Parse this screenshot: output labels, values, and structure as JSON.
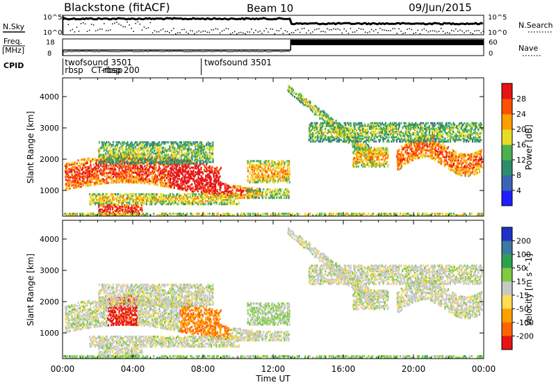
{
  "header": {
    "station": "Blackstone (fitACF)",
    "beam": "Beam 10",
    "date": "09/Jun/2015"
  },
  "left_labels": {
    "nsky": "N.Sky",
    "freq_top": "Freq.",
    "freq_unit": "[MHz]",
    "cpid": "CPID"
  },
  "right_labels": {
    "nsearch": "N.Search",
    "nave": "Nave"
  },
  "scale_labels": {
    "noise_hi": "10^5",
    "noise_lo": "10^0",
    "freq_hi": "18",
    "freq_lo": "8",
    "nave_hi": "60",
    "nave_lo": "0"
  },
  "cpid_labels": [
    {
      "text": "twofsound 3501",
      "hour": 0.05,
      "row": 0
    },
    {
      "text": "rbsp",
      "hour": 0.05,
      "row": 1
    },
    {
      "text": "CT-rbsp",
      "hour": 1.55,
      "row": 1
    },
    {
      "text": "rbsp 200",
      "hour": 2.2,
      "row": 1
    },
    {
      "text": "twofsound 3501",
      "hour": 8.0,
      "row": 0
    }
  ],
  "chart_data": [
    {
      "type": "heatmap",
      "name": "power",
      "ylabel": "Slant Range [km]",
      "yticks": [
        1000,
        2000,
        3000,
        4000
      ],
      "ylim": [
        180,
        4600
      ],
      "colorbar_label": "Power [dB]",
      "colorbar_ticks": [
        "4",
        "8",
        "12",
        "16",
        "20",
        "24",
        "28"
      ],
      "colorbar_colors": [
        "#1e1eff",
        "#3c64b4",
        "#2e8c6c",
        "#4db050",
        "#e6dc28",
        "#ff9e00",
        "#ff5000",
        "#e61414"
      ]
    },
    {
      "type": "heatmap",
      "name": "velocity",
      "ylabel": "Slant Range [km]",
      "yticks": [
        1000,
        2000,
        3000,
        4000
      ],
      "ylim": [
        180,
        4600
      ],
      "xlabel": "Time UT",
      "xticks": [
        "00:00",
        "04:00",
        "08:00",
        "12:00",
        "16:00",
        "20:00",
        "00:00"
      ],
      "xlim": [
        0,
        24
      ],
      "colorbar_label": "Velocity [m s^-1]",
      "colorbar_ticks": [
        "200",
        "100",
        "50",
        "15",
        "-15",
        "-50",
        "-100",
        "-200"
      ],
      "colorbar_colors": [
        "#1e32c8",
        "#3c78a0",
        "#2ea050",
        "#80cc40",
        "#c8c8c8",
        "#ffdc50",
        "#ffa000",
        "#ff6400",
        "#e61414"
      ]
    }
  ]
}
